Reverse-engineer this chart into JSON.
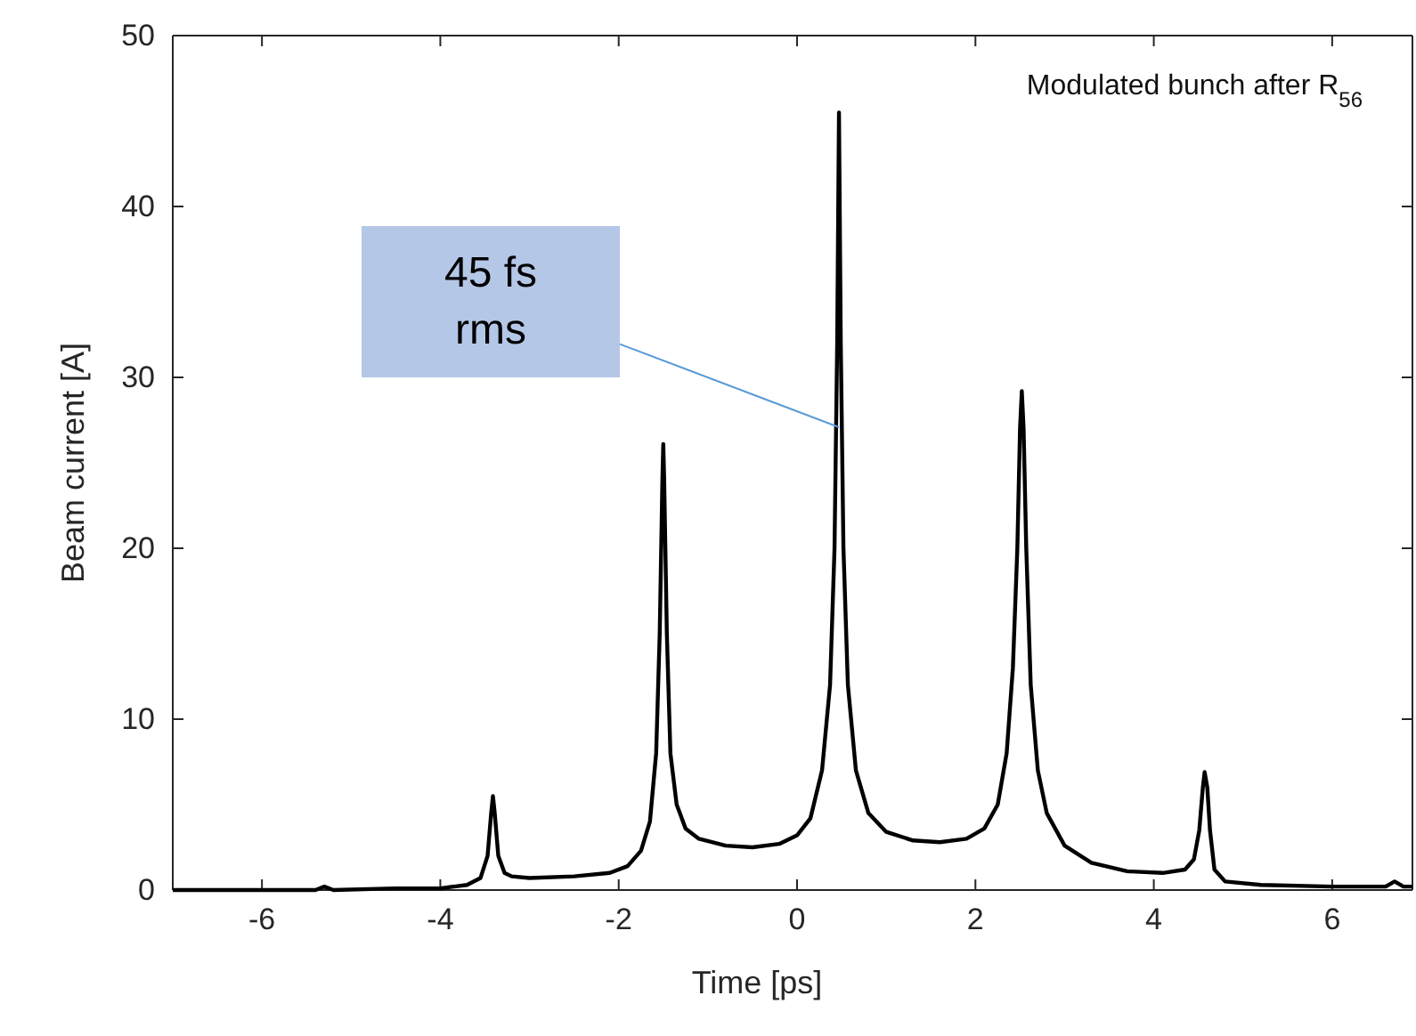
{
  "chart_data": {
    "type": "line",
    "xlabel": "Time [ps]",
    "ylabel": "Beam current [A]",
    "annotations": [
      "Modulated bunch after R$_{56}$",
      "45 fs rms"
    ],
    "xlim": [
      -7,
      6.9
    ],
    "ylim": [
      0,
      50
    ],
    "xticks": [
      -6,
      -4,
      -2,
      0,
      2,
      4,
      6
    ],
    "yticks": [
      0,
      10,
      20,
      30,
      40,
      50
    ],
    "grid": false,
    "line_style": "solid",
    "series": [
      {
        "color": "#000000",
        "x": [
          -7,
          -6,
          -5.4,
          -5.3,
          -5.2,
          -4.5,
          -4,
          -3.7,
          -3.55,
          -3.47,
          -3.43,
          -3.41,
          -3.39,
          -3.35,
          -3.28,
          -3.2,
          -3,
          -2.5,
          -2.1,
          -1.9,
          -1.75,
          -1.65,
          -1.58,
          -1.54,
          -1.51,
          -1.5,
          -1.49,
          -1.46,
          -1.42,
          -1.35,
          -1.25,
          -1.1,
          -0.8,
          -0.5,
          -0.2,
          0,
          0.15,
          0.28,
          0.37,
          0.42,
          0.45,
          0.47,
          0.49,
          0.52,
          0.57,
          0.66,
          0.8,
          1,
          1.3,
          1.6,
          1.9,
          2.1,
          2.25,
          2.35,
          2.42,
          2.47,
          2.5,
          2.52,
          2.54,
          2.57,
          2.62,
          2.7,
          2.8,
          3,
          3.3,
          3.7,
          4.1,
          4.35,
          4.45,
          4.51,
          4.55,
          4.57,
          4.6,
          4.63,
          4.68,
          4.8,
          5.2,
          6,
          6.6,
          6.7,
          6.8,
          6.9
        ],
        "values": [
          0,
          0,
          0,
          0.2,
          0,
          0.1,
          0.1,
          0.3,
          0.7,
          2,
          4.5,
          5.5,
          4.5,
          2,
          1,
          0.8,
          0.7,
          0.8,
          1,
          1.4,
          2.3,
          4,
          8,
          15,
          24,
          26.1,
          24,
          15,
          8,
          5,
          3.6,
          3,
          2.6,
          2.5,
          2.7,
          3.2,
          4.2,
          7,
          12,
          20,
          32,
          45.5,
          32,
          20,
          12,
          7,
          4.5,
          3.4,
          2.9,
          2.8,
          3,
          3.6,
          5,
          8,
          13,
          20,
          27,
          29.2,
          27,
          20,
          12,
          7,
          4.5,
          2.6,
          1.6,
          1.1,
          1,
          1.2,
          1.8,
          3.5,
          6,
          6.9,
          6,
          3.5,
          1.2,
          0.5,
          0.3,
          0.2,
          0.2,
          0.5,
          0.2,
          0.2
        ]
      }
    ]
  }
}
